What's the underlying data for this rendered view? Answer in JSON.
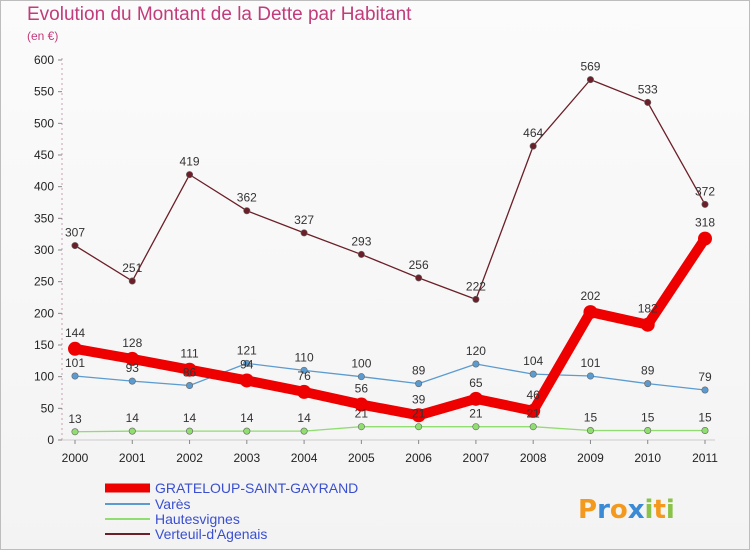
{
  "title": "Evolution du Montant de la Dette par Habitant",
  "subtitle": "(en €)",
  "brand": "Proxiti",
  "chart_data": {
    "type": "line",
    "title": "Evolution du Montant de la Dette par Habitant",
    "ylabel": "(en €)",
    "xlabel": "",
    "ylim": [
      0,
      600
    ],
    "yticks": [
      0,
      50,
      100,
      150,
      200,
      250,
      300,
      350,
      400,
      450,
      500,
      550,
      600
    ],
    "categories": [
      "2000",
      "2001",
      "2002",
      "2003",
      "2004",
      "2005",
      "2006",
      "2007",
      "2008",
      "2009",
      "2010",
      "2011"
    ],
    "grid": false,
    "legend_position": "bottom-left",
    "series": [
      {
        "name": "GRATELOUP-SAINT-GAYRAND",
        "color": "#ee0000",
        "values": [
          144,
          128,
          111,
          94,
          76,
          56,
          39,
          65,
          46,
          202,
          182,
          318
        ]
      },
      {
        "name": "Varès",
        "color": "#5b9bd0",
        "values": [
          101,
          93,
          86,
          121,
          110,
          100,
          89,
          120,
          104,
          101,
          89,
          79
        ]
      },
      {
        "name": "Hautesvignes",
        "color": "#90dd70",
        "values": [
          13,
          14,
          14,
          14,
          14,
          21,
          21,
          21,
          21,
          15,
          15,
          15
        ]
      },
      {
        "name": "Verteuil-d'Agenais",
        "color": "#6b1f28",
        "values": [
          307,
          251,
          419,
          362,
          327,
          293,
          256,
          222,
          464,
          569,
          533,
          372
        ]
      }
    ]
  }
}
